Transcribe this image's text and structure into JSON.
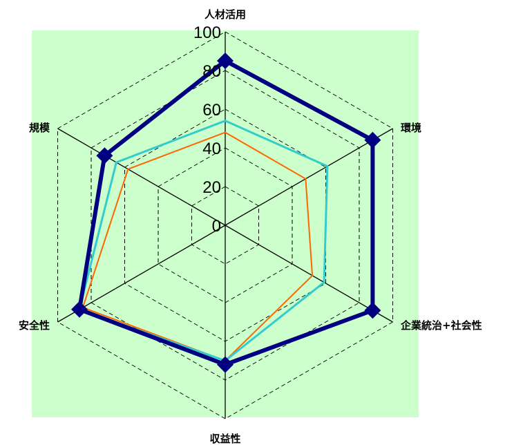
{
  "chart_data": {
    "type": "radar",
    "axes": [
      "人材活用",
      "環境",
      "企業統治+社会性",
      "収益性",
      "安全性",
      "規模"
    ],
    "ticks": [
      "0",
      "20",
      "40",
      "60",
      "80",
      "100"
    ],
    "range": [
      0,
      100
    ],
    "plot_background": "#ccffcc",
    "series": [
      {
        "values": [
          85,
          88,
          88,
          72,
          87,
          72
        ],
        "color": "#000080",
        "marker": "diamond"
      },
      {
        "values": [
          54,
          61,
          59,
          70,
          87,
          65
        ],
        "color": "#33cccc"
      },
      {
        "values": [
          48,
          48,
          52,
          70,
          85,
          58
        ],
        "color": "#ff6600"
      }
    ]
  }
}
